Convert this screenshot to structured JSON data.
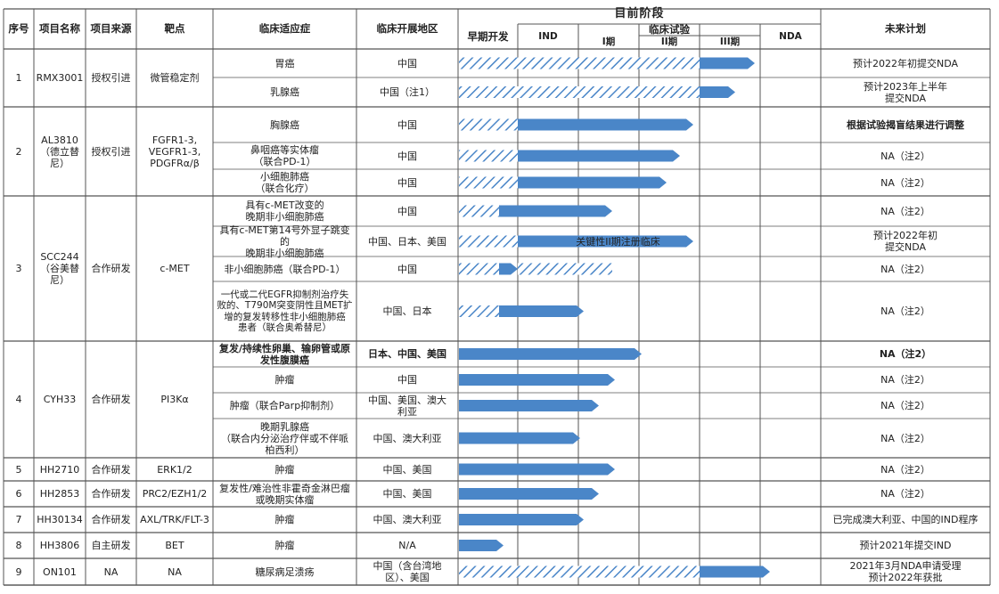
{
  "header": {
    "col_seq": "序号",
    "col_name": "项目名称",
    "col_source": "项目来源",
    "col_target": "靶点",
    "col_indication": "临床适应症",
    "col_region": "临床开展地区",
    "current_stage": "目前阶段",
    "stage_early": "早期开发",
    "stage_ind": "IND",
    "clinical_trial": "临床试验",
    "phase1": "I期",
    "phase2": "II期",
    "phase3": "III期",
    "stage_nda": "NDA",
    "col_plan": "未来计划"
  },
  "colors": {
    "bar_fill": "#4A86C8",
    "hatch_stroke": "#4A86C8",
    "grid": "#555555"
  },
  "projects": [
    {
      "seq": "1",
      "name": "RMX3001",
      "source": "授权引进",
      "target": "微管稳定剂"
    },
    {
      "seq": "2",
      "name": "AL3810\n（德立替\n尼）",
      "source": "授权引进",
      "target": "FGFR1-3,\nVEGFR1-3,\nPDGFRα/β"
    },
    {
      "seq": "3",
      "name": "SCC244\n（谷美替\n尼）",
      "source": "合作研发",
      "target": "c-MET"
    },
    {
      "seq": "4",
      "name": "CYH33",
      "source": "合作研发",
      "target": "PI3Kα"
    },
    {
      "seq": "5",
      "name": "HH2710",
      "source": "合作研发",
      "target": "ERK1/2"
    },
    {
      "seq": "6",
      "name": "HH2853",
      "source": "合作研发",
      "target": "PRC2/EZH1/2"
    },
    {
      "seq": "7",
      "name": "HH30134",
      "source": "合作研发",
      "target": "AXL/TRK/FLT-3"
    },
    {
      "seq": "8",
      "name": "HH3806",
      "source": "自主研发",
      "target": "BET"
    },
    {
      "seq": "9",
      "name": "ON101",
      "source": "NA",
      "target": "NA"
    }
  ],
  "rows": [
    {
      "indication": "胃癌",
      "region": "中国",
      "plan": "预计2022年初提交NDA",
      "hatch_end": "phase3_end",
      "solid_end": "nda_early",
      "bar_label": ""
    },
    {
      "indication": "乳腺癌",
      "region": "中国（注1）",
      "plan": "预计2023年上半年\n提交NDA",
      "hatch_end": "phase3_end",
      "solid_end": "phase3_end_plus",
      "bar_label": ""
    },
    {
      "indication": "胸腺癌",
      "region": "中国",
      "plan": "根据试验揭盲结果进行调整",
      "hatch_end": "ind_start",
      "solid_end": "phase2_end",
      "bar_label": ""
    },
    {
      "indication": "鼻咽癌等实体瘤\n（联合PD-1）",
      "region": "中国",
      "plan": "NA（注2）",
      "hatch_end": "ind_start",
      "solid_end": "phase2_late",
      "bar_label": ""
    },
    {
      "indication": "小细胞肺癌\n（联合化疗）",
      "region": "中国",
      "plan": "NA（注2）",
      "hatch_end": "ind_start",
      "solid_end": "phase2_mid",
      "bar_label": ""
    },
    {
      "indication": "具有c-MET改变的\n晚期非小细胞肺癌",
      "region": "中国",
      "plan": "NA（注2）",
      "hatch_end": "early_mid",
      "solid_end": "phase1_late",
      "bar_label": ""
    },
    {
      "indication": "具有c-MET第14号外显子跳变的\n晚期非小细胞肺癌",
      "region": "中国、日本、美国",
      "plan": "预计2022年初\n提交NDA",
      "hatch_end": "ind_start",
      "solid_end": "phase2_end",
      "bar_label": "关键性II期注册临床"
    },
    {
      "indication": "非小细胞肺癌（联合PD-1）",
      "region": "中国",
      "plan": "NA（注2）",
      "hatch_end": "early_mid2",
      "solid_end": "ind_start",
      "bar_label": "",
      "hatch_tail": "phase1_late"
    },
    {
      "indication": "一代或二代EGFR抑制剂治疗失\n败的、T790M突变阴性且MET扩\n增的复发转移性非小细胞肺癌\n患者（联合奥希替尼）",
      "region": "中国、日本",
      "plan": "NA（注2）",
      "hatch_end": "early_mid2",
      "solid_end": "phase1_mid",
      "bar_label": ""
    },
    {
      "indication": "复发/持续性卵巢、输卵管或原\n发性腹膜癌",
      "region": "日本、中国、美国",
      "plan": "NA（注2）",
      "hatch_end": "",
      "solid_end": "phase1_end_plus",
      "bar_label": ""
    },
    {
      "indication": "肿瘤",
      "region": "中国",
      "plan": "NA（注2）",
      "hatch_end": "",
      "solid_end": "phase1_late2",
      "bar_label": ""
    },
    {
      "indication": "肿瘤（联合Parp抑制剂）",
      "region": "中国、美国、澳大\n利亚",
      "plan": "NA（注2）",
      "hatch_end": "",
      "solid_end": "phase1_mid2",
      "bar_label": ""
    },
    {
      "indication": "晚期乳腺癌\n（联合内分泌治疗伴或不伴哌\n柏西利）",
      "region": "中国、澳大利亚",
      "plan": "NA（注2）",
      "hatch_end": "",
      "solid_end": "phase1_early",
      "bar_label": ""
    },
    {
      "indication": "肿瘤",
      "region": "中国、美国",
      "plan": "NA（注2）",
      "hatch_end": "",
      "solid_end": "phase1_late2",
      "bar_label": ""
    },
    {
      "indication": "复发性/难治性非霍奇金淋巴瘤\n或晚期实体瘤",
      "region": "中国、美国",
      "plan": "NA（注2）",
      "hatch_end": "",
      "solid_end": "phase1_late3",
      "bar_label": ""
    },
    {
      "indication": "肿瘤",
      "region": "中国、澳大利亚",
      "plan": "已完成澳大利亚、中国的IND程序",
      "hatch_end": "",
      "solid_end": "phase1_mid",
      "bar_label": ""
    },
    {
      "indication": "肿瘤",
      "region": "N/A",
      "plan": "预计2021年提交IND",
      "hatch_end": "",
      "solid_end": "early_mid3",
      "bar_label": ""
    },
    {
      "indication": "糖尿病足溃疡",
      "region": "中国（含台湾地\n区）、美国",
      "plan": "2021年3月NDA申请受理\n预计2022年获批",
      "hatch_end": "phase3_end",
      "solid_end": "nda_mid",
      "bar_label": ""
    }
  ]
}
